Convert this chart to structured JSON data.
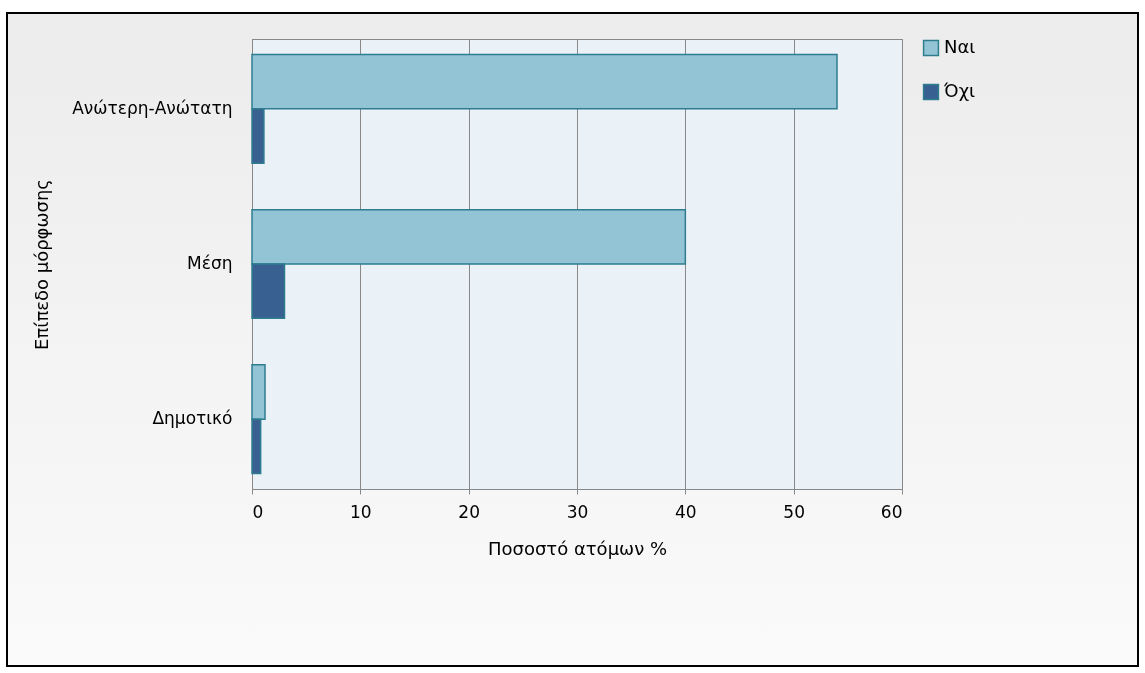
{
  "chart_data": {
    "type": "bar",
    "orientation": "horizontal",
    "xlabel": "Ποσοστό ατόμων %",
    "ylabel": "Επίπεδο μόρφωσης",
    "categories": [
      "Ανώτερη-Ανώτατη",
      "Μέση",
      "Δημοτικό"
    ],
    "series": [
      {
        "name": "Ναι",
        "color": "#93c4d6",
        "values": [
          54,
          40,
          1.2
        ]
      },
      {
        "name": "Όχι",
        "color": "#386192",
        "values": [
          1.1,
          3,
          0.8
        ]
      }
    ],
    "xlim": [
      0,
      60
    ],
    "xticks": [
      0,
      10,
      20,
      30,
      40,
      50,
      60
    ],
    "grid": "x",
    "legend": "right"
  }
}
